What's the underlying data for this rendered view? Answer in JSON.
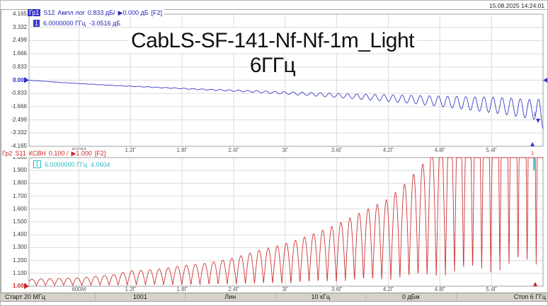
{
  "window": {
    "datetime": "15.08.2025 14:24:01"
  },
  "title_overlay": "CabLS-SF-141-Nf-Nf-1m_Light 6ГГц",
  "colors": {
    "trace1_blue": "#3c3cc8",
    "trace2_red": "#cc3333",
    "marker_readout_cyan": "#27bcc9",
    "grid": "#dcdcdc",
    "plot_border": "#a0a0a0",
    "status_bg": "#d6d2ca"
  },
  "top_chart": {
    "header": {
      "trace": "Гр1",
      "meas": "S12",
      "format": "Ампл лог",
      "scale": "0.833 дБ/",
      "ref": "▶0.000 дБ",
      "channel": "[F2]"
    },
    "marker_readout": {
      "n": "1",
      "freq": "6.0000000 ГГц",
      "value": "-3.0516 дБ"
    },
    "y_labels": [
      "4.165",
      "3.332",
      "2.499",
      "1.666",
      "0.833",
      "0.000",
      "-0.833",
      "-1.666",
      "-2.499",
      "-3.332",
      "-4.165"
    ],
    "ref_index": 5
  },
  "bottom_chart": {
    "header": {
      "trace": "Гр2",
      "meas": "S11",
      "format": "КСВН",
      "scale": "0.100 /",
      "ref": "▶1.000",
      "channel": "[F2]"
    },
    "marker_readout": {
      "n": "1",
      "freq": "6.0000000 ГГц",
      "value": "4.0604"
    },
    "y_labels": [
      "2.000",
      "1.900",
      "1.800",
      "1.700",
      "1.600",
      "1.500",
      "1.400",
      "1.300",
      "1.200",
      "1.100",
      "1.000"
    ],
    "ref_index": 10
  },
  "xaxis": {
    "labels": [
      "600M",
      "1.2Г",
      "1.8Г",
      "2.4Г",
      "3Г",
      "3.6Г",
      "4.2Г",
      "4.8Г",
      "5.4Г"
    ],
    "freqs_ghz": [
      0.6,
      1.2,
      1.8,
      2.4,
      3.0,
      3.6,
      4.2,
      4.8,
      5.4
    ]
  },
  "status_bar": {
    "cells": [
      "Старт 20 МГц",
      "1001",
      "Лин",
      "10 кГц",
      "0 дБм",
      "Стоп 6 ГГц"
    ]
  },
  "chart_data": [
    {
      "type": "line",
      "name": "S12 insertion loss, log magnitude",
      "trace": "Гр1",
      "color": "#3c3cc8",
      "x_unit": "GHz",
      "x_range": [
        0.02,
        6.0
      ],
      "y_unit": "dB",
      "ylim": [
        -4.165,
        4.165
      ],
      "y_per_div": 0.833,
      "ref_level": 0.0,
      "x_gridlines_ghz": [
        0.6,
        1.2,
        1.8,
        2.4,
        3.0,
        3.6,
        4.2,
        4.8,
        5.4
      ],
      "marker": {
        "n": "1",
        "freq_ghz": 6.0,
        "value": -3.0516
      },
      "model": {
        "kind": "baseline_plus_ripple",
        "ripple_period_ghz": 0.10573,
        "baseline_keypoints": [
          [
            0.02,
            0.0
          ],
          [
            0.5,
            -0.18
          ],
          [
            1.0,
            -0.33
          ],
          [
            1.5,
            -0.45
          ],
          [
            2.0,
            -0.57
          ],
          [
            2.5,
            -0.68
          ],
          [
            3.0,
            -0.8
          ],
          [
            3.5,
            -0.93
          ],
          [
            4.0,
            -1.07
          ],
          [
            4.5,
            -1.22
          ],
          [
            5.0,
            -1.4
          ],
          [
            5.5,
            -1.6
          ],
          [
            5.9,
            -1.85
          ],
          [
            6.0,
            -2.1
          ]
        ],
        "ripple_amp_keypoints": [
          [
            0.02,
            0.005
          ],
          [
            1.0,
            0.012
          ],
          [
            2.0,
            0.03
          ],
          [
            2.5,
            0.05
          ],
          [
            3.0,
            0.08
          ],
          [
            3.5,
            0.12
          ],
          [
            4.0,
            0.18
          ],
          [
            4.5,
            0.26
          ],
          [
            5.0,
            0.38
          ],
          [
            5.5,
            0.52
          ],
          [
            5.9,
            0.62
          ],
          [
            6.0,
            0.95
          ]
        ]
      }
    },
    {
      "type": "line",
      "name": "S11 VSWR",
      "trace": "Гр2",
      "color": "#cc3333",
      "x_unit": "GHz",
      "x_range": [
        0.02,
        6.0
      ],
      "y_unit": "VSWR",
      "ylim": [
        1.0,
        2.0
      ],
      "y_per_div": 0.1,
      "ref_level": 1.0,
      "x_gridlines_ghz": [
        0.6,
        1.2,
        1.8,
        2.4,
        3.0,
        3.6,
        4.2,
        4.8,
        5.4
      ],
      "marker": {
        "n": "1",
        "freq_ghz": 6.0,
        "value": 4.0604
      },
      "model": {
        "kind": "standing_wave_ripple",
        "period_ghz": 0.10573,
        "clip_max": 2.0,
        "peak_envelope_keypoints": [
          [
            0.02,
            1.055
          ],
          [
            0.6,
            1.065
          ],
          [
            1.0,
            1.09
          ],
          [
            1.2,
            1.12
          ],
          [
            1.5,
            1.13
          ],
          [
            1.8,
            1.16
          ],
          [
            2.1,
            1.18
          ],
          [
            2.4,
            1.22
          ],
          [
            2.7,
            1.28
          ],
          [
            3.0,
            1.33
          ],
          [
            3.3,
            1.4
          ],
          [
            3.6,
            1.48
          ],
          [
            3.9,
            1.58
          ],
          [
            4.2,
            1.68
          ],
          [
            4.4,
            1.8
          ],
          [
            4.6,
            1.95
          ],
          [
            4.8,
            2.2
          ],
          [
            5.0,
            2.6
          ],
          [
            5.4,
            3.2
          ],
          [
            6.0,
            4.06
          ]
        ],
        "min_envelope_keypoints": [
          [
            0.02,
            1.005
          ],
          [
            2.0,
            1.01
          ],
          [
            3.0,
            1.02
          ],
          [
            4.0,
            1.04
          ],
          [
            5.0,
            1.08
          ],
          [
            6.0,
            1.12
          ]
        ]
      }
    }
  ]
}
